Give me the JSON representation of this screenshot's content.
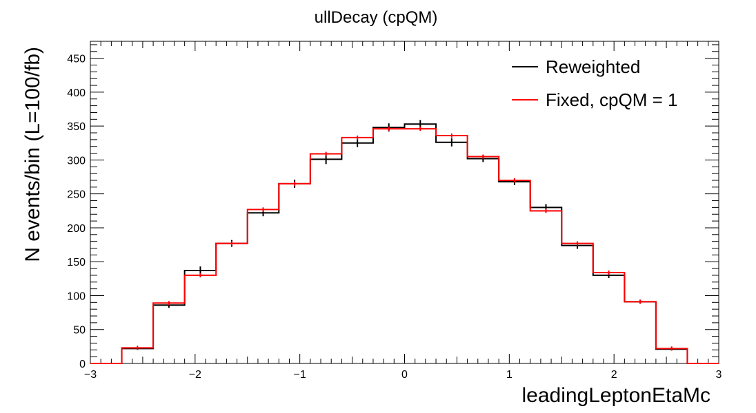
{
  "chart_data": {
    "type": "line",
    "title": "ullDecay (cpQM)",
    "xlabel": "leadingLeptonEtaMc",
    "ylabel": "N events/bin (L=100/fb)",
    "xlim": [
      -3,
      3
    ],
    "ylim": [
      0,
      475
    ],
    "x_ticks": [
      -3,
      -2,
      -1,
      0,
      1,
      2,
      3
    ],
    "x_tick_labels": [
      "−3",
      "−2",
      "−1",
      "0",
      "1",
      "2",
      "3"
    ],
    "y_ticks": [
      0,
      50,
      100,
      150,
      200,
      250,
      300,
      350,
      400,
      450
    ],
    "y_tick_labels": [
      "0",
      "50",
      "100",
      "150",
      "200",
      "250",
      "300",
      "350",
      "400",
      "450"
    ],
    "legend_position": "top-right",
    "bin_edges": [
      -3.0,
      -2.7,
      -2.4,
      -2.1,
      -1.8,
      -1.5,
      -1.2,
      -0.9,
      -0.6,
      -0.3,
      0.0,
      0.3,
      0.6,
      0.9,
      1.2,
      1.5,
      1.8,
      2.1,
      2.4,
      2.7,
      3.0
    ],
    "series": [
      {
        "name": "Reweighted",
        "color": "#000000",
        "values": [
          0,
          22,
          86,
          137,
          177,
          222,
          265,
          301,
          325,
          348,
          353,
          326,
          302,
          268,
          230,
          174,
          130,
          91,
          21,
          0
        ],
        "errors": [
          0,
          2,
          4,
          6,
          5,
          5,
          6,
          7,
          6,
          6,
          6,
          6,
          5,
          5,
          5,
          5,
          4,
          3,
          2,
          0
        ]
      },
      {
        "name": "Fixed, cpQM = 1",
        "color": "#ff0000",
        "values": [
          0,
          23,
          89,
          130,
          177,
          227,
          265,
          309,
          333,
          346,
          346,
          336,
          305,
          270,
          225,
          177,
          134,
          91,
          22,
          0
        ]
      }
    ]
  }
}
